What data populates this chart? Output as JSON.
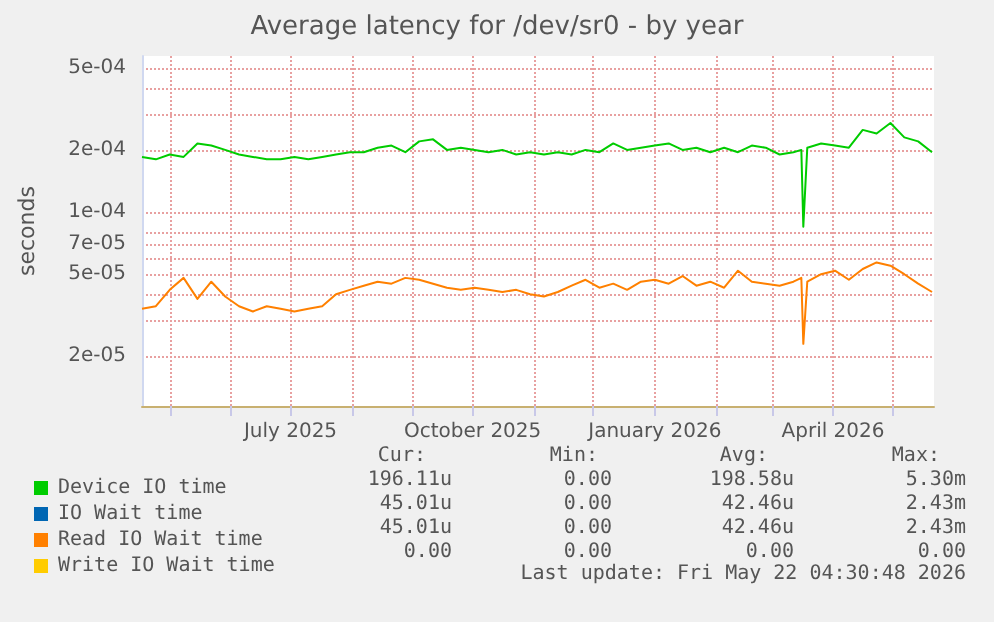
{
  "chart_data": {
    "type": "line",
    "title": "Average latency for /dev/sr0 - by year",
    "ylabel": "seconds",
    "log": "y",
    "grid": true,
    "legend": "bottom",
    "marker": "none",
    "line_style": "solid",
    "xlim": [
      "2025-04-17",
      "2026-05-22"
    ],
    "xticks": [
      {
        "value": "2025-05-01",
        "label": null
      },
      {
        "value": "2025-06-01",
        "label": null
      },
      {
        "value": "2025-07-01",
        "label": "July 2025"
      },
      {
        "value": "2025-08-01",
        "label": null
      },
      {
        "value": "2025-09-01",
        "label": null
      },
      {
        "value": "2025-10-01",
        "label": "October 2025"
      },
      {
        "value": "2025-11-01",
        "label": null
      },
      {
        "value": "2025-12-01",
        "label": null
      },
      {
        "value": "2026-01-01",
        "label": "January 2026"
      },
      {
        "value": "2026-02-01",
        "label": null
      },
      {
        "value": "2026-03-01",
        "label": null
      },
      {
        "value": "2026-04-01",
        "label": "April 2026"
      },
      {
        "value": "2026-05-01",
        "label": null
      }
    ],
    "ylim": [
      1.15e-05,
      0.00057
    ],
    "yticks": [
      {
        "value": 2e-05,
        "label": "2e-05"
      },
      {
        "value": 3e-05,
        "label": null
      },
      {
        "value": 4e-05,
        "label": null
      },
      {
        "value": 5e-05,
        "label": "5e-05"
      },
      {
        "value": 6e-05,
        "label": null
      },
      {
        "value": 7e-05,
        "label": "7e-05"
      },
      {
        "value": 8e-05,
        "label": null
      },
      {
        "value": 0.0001,
        "label": "1e-04"
      },
      {
        "value": 0.0002,
        "label": "2e-04"
      },
      {
        "value": 0.0003,
        "label": null
      },
      {
        "value": 0.0004,
        "label": null
      },
      {
        "value": 0.0005,
        "label": "5e-04"
      }
    ],
    "x": [
      "2025-04-17",
      "2025-04-24",
      "2025-05-01",
      "2025-05-08",
      "2025-05-15",
      "2025-05-22",
      "2025-05-29",
      "2025-06-05",
      "2025-06-12",
      "2025-06-19",
      "2025-06-26",
      "2025-07-03",
      "2025-07-10",
      "2025-07-17",
      "2025-07-24",
      "2025-07-31",
      "2025-08-07",
      "2025-08-14",
      "2025-08-21",
      "2025-08-28",
      "2025-09-04",
      "2025-09-11",
      "2025-09-18",
      "2025-09-25",
      "2025-10-02",
      "2025-10-09",
      "2025-10-16",
      "2025-10-23",
      "2025-10-30",
      "2025-11-06",
      "2025-11-13",
      "2025-11-20",
      "2025-11-27",
      "2025-12-04",
      "2025-12-11",
      "2025-12-18",
      "2025-12-25",
      "2026-01-01",
      "2026-01-08",
      "2026-01-15",
      "2026-01-22",
      "2026-01-29",
      "2026-02-05",
      "2026-02-12",
      "2026-02-19",
      "2026-02-26",
      "2026-03-05",
      "2026-03-12",
      "2026-03-16",
      "2026-03-17",
      "2026-03-19",
      "2026-03-26",
      "2026-04-02",
      "2026-04-09",
      "2026-04-16",
      "2026-04-23",
      "2026-04-30",
      "2026-05-07",
      "2026-05-14",
      "2026-05-21"
    ],
    "series": [
      {
        "name": "Device IO time",
        "color": "#00cc00",
        "values": [
          0.000185,
          0.00018,
          0.00019,
          0.000185,
          0.000215,
          0.00021,
          0.0002,
          0.00019,
          0.000185,
          0.00018,
          0.00018,
          0.000185,
          0.00018,
          0.000185,
          0.00019,
          0.000195,
          0.000195,
          0.000205,
          0.00021,
          0.000195,
          0.00022,
          0.000225,
          0.0002,
          0.000205,
          0.0002,
          0.000195,
          0.0002,
          0.00019,
          0.000195,
          0.00019,
          0.000195,
          0.00019,
          0.0002,
          0.000195,
          0.000215,
          0.0002,
          0.000205,
          0.00021,
          0.000215,
          0.0002,
          0.000205,
          0.000195,
          0.000205,
          0.000195,
          0.00021,
          0.000205,
          0.00019,
          0.000195,
          0.0002,
          8.5e-05,
          0.000205,
          0.000215,
          0.00021,
          0.000205,
          0.00025,
          0.00024,
          0.00027,
          0.00023,
          0.00022,
          0.000195
        ]
      },
      {
        "name": "IO Wait time",
        "color": "#0066b3",
        "values": [
          null,
          null,
          null,
          null,
          null,
          null,
          null,
          null,
          null,
          null,
          null,
          null,
          null,
          null,
          null,
          null,
          null,
          null,
          null,
          null,
          null,
          null,
          null,
          null,
          null,
          null,
          null,
          null,
          null,
          null,
          null,
          null,
          null,
          null,
          null,
          null,
          null,
          null,
          null,
          null,
          null,
          null,
          null,
          null,
          null,
          null,
          null,
          null,
          null,
          null,
          null,
          null,
          null,
          null,
          null,
          null,
          null,
          null,
          null,
          null
        ]
      },
      {
        "name": "Read IO Wait time",
        "color": "#ff8000",
        "values": [
          3.4e-05,
          3.5e-05,
          4.2e-05,
          4.8e-05,
          3.8e-05,
          4.6e-05,
          3.9e-05,
          3.5e-05,
          3.3e-05,
          3.5e-05,
          3.4e-05,
          3.3e-05,
          3.4e-05,
          3.5e-05,
          4e-05,
          4.2e-05,
          4.4e-05,
          4.6e-05,
          4.5e-05,
          4.8e-05,
          4.7e-05,
          4.5e-05,
          4.3e-05,
          4.2e-05,
          4.3e-05,
          4.2e-05,
          4.1e-05,
          4.2e-05,
          4e-05,
          3.9e-05,
          4.1e-05,
          4.4e-05,
          4.7e-05,
          4.3e-05,
          4.5e-05,
          4.2e-05,
          4.6e-05,
          4.7e-05,
          4.5e-05,
          4.9e-05,
          4.4e-05,
          4.6e-05,
          4.3e-05,
          5.2e-05,
          4.6e-05,
          4.5e-05,
          4.4e-05,
          4.6e-05,
          4.8e-05,
          2.3e-05,
          4.6e-05,
          5e-05,
          5.2e-05,
          4.7e-05,
          5.3e-05,
          5.7e-05,
          5.5e-05,
          5e-05,
          4.5e-05,
          4.1e-05
        ]
      },
      {
        "name": "Write IO Wait time",
        "color": "#ffcc00",
        "values": [
          null,
          null,
          null,
          null,
          null,
          null,
          null,
          null,
          null,
          null,
          null,
          null,
          null,
          null,
          null,
          null,
          null,
          null,
          null,
          null,
          null,
          null,
          null,
          null,
          null,
          null,
          null,
          null,
          null,
          null,
          null,
          null,
          null,
          null,
          null,
          null,
          null,
          null,
          null,
          null,
          null,
          null,
          null,
          null,
          null,
          null,
          null,
          null,
          null,
          null,
          null,
          null,
          null,
          null,
          null,
          null,
          null,
          null,
          null,
          null
        ]
      }
    ],
    "annotations": [
      "Cur:",
      "Min:",
      "Avg:",
      "Max:",
      "196.11u",
      "0.00",
      "198.58u",
      "5.30m",
      "45.01u",
      "0.00",
      "42.46u",
      "2.43m",
      "45.01u",
      "0.00",
      "42.46u",
      "2.43m",
      "0.00",
      "0.00",
      "0.00",
      "0.00",
      "Last update: Fri May 22 04:30:48 2026"
    ]
  }
}
